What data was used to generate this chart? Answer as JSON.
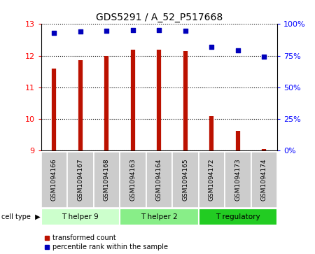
{
  "title": "GDS5291 / A_52_P517668",
  "samples": [
    "GSM1094166",
    "GSM1094167",
    "GSM1094168",
    "GSM1094163",
    "GSM1094164",
    "GSM1094165",
    "GSM1094172",
    "GSM1094173",
    "GSM1094174"
  ],
  "transformed_counts": [
    11.6,
    11.85,
    12.0,
    12.2,
    12.2,
    12.15,
    10.1,
    9.62,
    9.05
  ],
  "percentile_ranks": [
    93,
    94,
    94.5,
    95.5,
    95.5,
    94.5,
    82,
    79,
    74
  ],
  "cell_types": [
    {
      "label": "T helper 9",
      "start": 0,
      "end": 3,
      "color": "#ccffcc"
    },
    {
      "label": "T helper 2",
      "start": 3,
      "end": 6,
      "color": "#88ee88"
    },
    {
      "label": "T regulatory",
      "start": 6,
      "end": 9,
      "color": "#22cc22"
    }
  ],
  "ylim_left": [
    9,
    13
  ],
  "ylim_right": [
    0,
    100
  ],
  "yticks_left": [
    9,
    10,
    11,
    12,
    13
  ],
  "yticks_right": [
    0,
    25,
    50,
    75,
    100
  ],
  "bar_color": "#bb1100",
  "dot_color": "#0000bb",
  "label_bg_color": "#cccccc",
  "bar_linewidth": 4.5,
  "dot_size": 22
}
